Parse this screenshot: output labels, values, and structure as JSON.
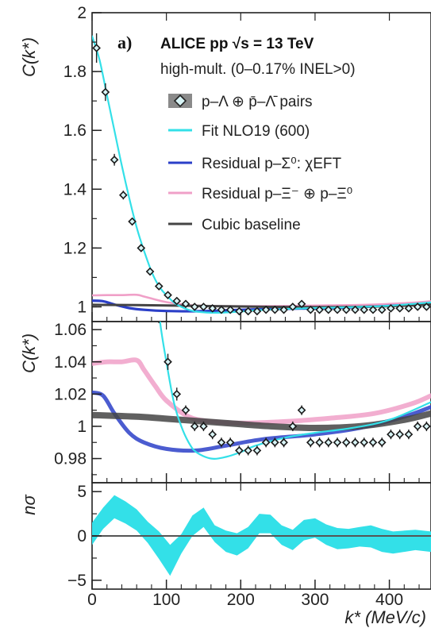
{
  "chart_data": {
    "type": "line",
    "panel_label": "a)",
    "title_lines": [
      "ALICE pp  √s = 13 TeV",
      "high-mult. (0–0.17% INEL>0)"
    ],
    "experiment": "ALICE",
    "collision": "pp",
    "energy": "√s = 13 TeV",
    "multiplicity": "high-mult. (0–0.17% INEL>0)",
    "xlabel": "k* (MeV/c)",
    "xlim": [
      0,
      456
    ],
    "x_ticks": [
      0,
      100,
      200,
      300,
      400
    ],
    "legend_position": "top-right",
    "legend": [
      {
        "label": "p–Λ ⊕ p̄–Λ̄ pairs",
        "kind": "marker"
      },
      {
        "label": "Fit NLO19 (600)",
        "kind": "line",
        "color": "#33e0e8"
      },
      {
        "label": "Residual p–Σ⁰: χEFT",
        "kind": "line",
        "color": "#2b3fc8"
      },
      {
        "label": "Residual p–Ξ⁻ ⊕ p–Ξ⁰",
        "kind": "line",
        "color": "#f0a0c8"
      },
      {
        "label": "Cubic baseline",
        "kind": "line",
        "color": "#444444"
      }
    ],
    "panels": [
      {
        "name": "top",
        "ylabel": "C(k*)",
        "ylim": [
          0.95,
          2.0
        ],
        "y_ticks": [
          1,
          1.2,
          1.4,
          1.6,
          1.8,
          2
        ],
        "y_tick_labels": [
          "1",
          "1.2",
          "1.4",
          "1.6",
          "1.8",
          "2"
        ],
        "series": [
          {
            "name": "p–Λ ⊕ p̄–Λ̄ pairs",
            "type": "scatter",
            "x": [
              6,
              18,
              30,
              42,
              54,
              66,
              78,
              90,
              102,
              114,
              126,
              138,
              150,
              162,
              174,
              186,
              198,
              210,
              222,
              234,
              246,
              258,
              270,
              282,
              294,
              306,
              318,
              330,
              342,
              354,
              366,
              378,
              390,
              402,
              414,
              426,
              438,
              450
            ],
            "y": [
              1.88,
              1.73,
              1.5,
              1.38,
              1.29,
              1.2,
              1.12,
              1.07,
              1.04,
              1.02,
              1.01,
              1.0,
              1.0,
              0.995,
              0.99,
              0.99,
              0.985,
              0.985,
              0.985,
              0.99,
              0.99,
              0.99,
              1.0,
              1.01,
              0.99,
              0.99,
              0.99,
              0.99,
              0.99,
              0.99,
              0.99,
              0.99,
              0.99,
              0.995,
              0.995,
              0.995,
              1.0,
              1.0
            ],
            "yerr": [
              0.05,
              0.03,
              0.02,
              0.015,
              0.012,
              0.01,
              0.008,
              0.006,
              0.005,
              0.004,
              0.003,
              0.003,
              0.003,
              0.003,
              0.003,
              0.003,
              0.003,
              0.003,
              0.003,
              0.003,
              0.003,
              0.003,
              0.003,
              0.003,
              0.003,
              0.003,
              0.003,
              0.003,
              0.003,
              0.003,
              0.003,
              0.003,
              0.003,
              0.003,
              0.003,
              0.003,
              0.003,
              0.003
            ]
          },
          {
            "name": "Fit NLO19 (600)",
            "type": "line",
            "color": "#33e0e8",
            "x": [
              0,
              10,
              20,
              30,
              40,
              50,
              60,
              70,
              80,
              90,
              100,
              110,
              120,
              130,
              140,
              160,
              180,
              200,
              220,
              260,
              300,
              350,
              400,
              456
            ],
            "y": [
              1.92,
              1.84,
              1.72,
              1.6,
              1.48,
              1.37,
              1.27,
              1.19,
              1.12,
              1.07,
              1.04,
              1.015,
              1.0,
              0.99,
              0.984,
              0.98,
              0.981,
              0.984,
              0.988,
              0.993,
              0.996,
              0.999,
              1.004,
              1.015
            ]
          },
          {
            "name": "Residual p–Σ⁰: χEFT",
            "type": "line",
            "color": "#2b3fc8",
            "x": [
              0,
              15,
              30,
              50,
              70,
              100,
              140,
              180,
              230,
              300,
              360,
              420,
              456
            ],
            "y": [
              1.021,
              1.019,
              1.008,
              0.996,
              0.99,
              0.986,
              0.985,
              0.988,
              0.992,
              0.995,
              0.999,
              1.006,
              1.012
            ]
          },
          {
            "name": "Residual p–Ξ⁻ ⊕ p–Ξ⁰",
            "type": "line",
            "color": "#f0a0c8",
            "x": [
              0,
              20,
              40,
              60,
              70,
              85,
              100,
              130,
              160,
              200,
              260,
              320,
              380,
              430,
              456
            ],
            "y": [
              1.039,
              1.04,
              1.04,
              1.041,
              1.035,
              1.025,
              1.016,
              1.006,
              1.003,
              1.002,
              1.003,
              1.005,
              1.008,
              1.014,
              1.019
            ]
          },
          {
            "name": "Cubic baseline",
            "type": "line",
            "color": "#444444",
            "x": [
              0,
              60,
              120,
              180,
              240,
              300,
              360,
              420,
              456
            ],
            "y": [
              1.007,
              1.006,
              1.004,
              1.002,
              1.0,
              0.999,
              1.0,
              1.004,
              1.008
            ]
          }
        ]
      },
      {
        "name": "middle",
        "ylabel": "C(k*)",
        "ylim": [
          0.965,
          1.065
        ],
        "y_ticks": [
          0.98,
          1.0,
          1.02,
          1.04,
          1.06
        ],
        "y_tick_labels": [
          "0.98",
          "1",
          "1.02",
          "1.04",
          "1.06"
        ],
        "note": "zoom of the top panel around unity"
      },
      {
        "name": "bottom",
        "ylabel": "nσ",
        "ylim": [
          -6,
          6
        ],
        "y_ticks": [
          -5,
          0,
          5
        ],
        "y_tick_labels": [
          "−5",
          "0",
          "5"
        ],
        "series": [
          {
            "name": "nσ band",
            "type": "area",
            "color": "#33e0e8",
            "x": [
              0,
              15,
              30,
              45,
              60,
              75,
              90,
              105,
              120,
              135,
              150,
              165,
              180,
              195,
              210,
              225,
              240,
              255,
              270,
              285,
              300,
              315,
              330,
              345,
              360,
              375,
              390,
              405,
              420,
              435,
              456
            ],
            "upper": [
              1.5,
              3.2,
              4.6,
              3.9,
              3.0,
              1.6,
              0.5,
              -1.0,
              0.2,
              2.3,
              3.2,
              1.2,
              0.6,
              0.3,
              1.0,
              2.5,
              2.4,
              1.2,
              0.7,
              1.8,
              2.0,
              1.3,
              0.9,
              0.8,
              1.0,
              1.2,
              0.8,
              0.5,
              0.6,
              0.7,
              0.5
            ],
            "lower": [
              -1.0,
              0.8,
              2.0,
              1.4,
              0.6,
              -0.8,
              -2.6,
              -4.5,
              -2.0,
              0.0,
              1.0,
              -0.7,
              -1.8,
              -2.2,
              -1.4,
              0.3,
              0.3,
              -1.0,
              -1.6,
              -0.5,
              -0.2,
              -1.0,
              -1.5,
              -1.4,
              -1.2,
              -1.3,
              -1.8,
              -2.0,
              -1.8,
              -1.6,
              -1.8
            ]
          },
          {
            "name": "zero line",
            "type": "line",
            "color": "#555555",
            "x": [
              0,
              456
            ],
            "y": [
              0,
              0
            ]
          }
        ]
      }
    ]
  }
}
